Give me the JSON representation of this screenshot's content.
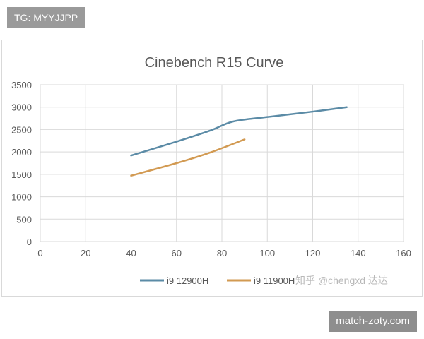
{
  "top_tag": "TG: MYYJJPP",
  "bottom_tag": "match-zoty.com",
  "watermark": "知乎 @chengxd 达达",
  "colors": {
    "grid": "#d9d9d9",
    "axis_text": "#595959",
    "title": "#595959"
  },
  "chart_data": {
    "type": "line",
    "title": "Cinebench R15 Curve",
    "xlim": [
      0,
      160
    ],
    "ylim": [
      0,
      3500
    ],
    "xticks": [
      0,
      20,
      40,
      60,
      80,
      100,
      120,
      140,
      160
    ],
    "yticks": [
      0,
      500,
      1000,
      1500,
      2000,
      2500,
      3000,
      3500
    ],
    "grid": true,
    "legend_position": "bottom",
    "series": [
      {
        "name": "i9 12900H",
        "color": "#5b8ba6",
        "x": [
          40,
          60,
          75,
          85,
          100,
          120,
          135
        ],
        "y": [
          1920,
          2230,
          2480,
          2680,
          2780,
          2900,
          3000
        ]
      },
      {
        "name": "i9 11900H",
        "color": "#d29a52",
        "x": [
          40,
          60,
          75,
          90
        ],
        "y": [
          1470,
          1750,
          1990,
          2280
        ]
      }
    ]
  }
}
